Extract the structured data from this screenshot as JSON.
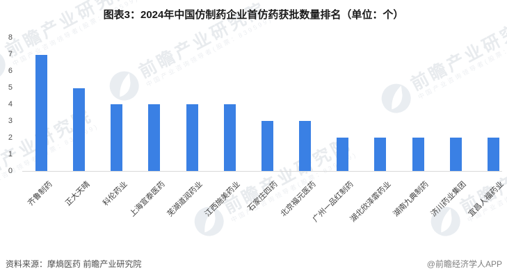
{
  "title": "图表3：2024年中国仿制药企业首仿药获批数量排名（单位：个）",
  "chart_data": {
    "type": "bar",
    "title": "2024年中国仿制药企业首仿药获批数量排名",
    "unit_label": "单位：个",
    "categories": [
      "齐鲁制药",
      "正大天晴",
      "科伦药业",
      "上海宣泰医药",
      "芜湖道润药业",
      "江西施美药业",
      "石家庄四药",
      "北京福元医药",
      "广州一品红制药",
      "湖北欣泽霏药业",
      "湖南九典制药",
      "济川药业集团",
      "宜昌人福药业"
    ],
    "values": [
      7,
      5,
      4,
      4,
      4,
      4,
      3,
      3,
      2,
      2,
      2,
      2,
      2
    ],
    "xlabel": "",
    "ylabel": "",
    "ylim": [
      0,
      8
    ],
    "yticks": [
      0,
      1,
      2,
      3,
      4,
      5,
      6,
      7,
      8
    ],
    "grid": "off",
    "legend": "none",
    "bar_color": "#3A80E4"
  },
  "footer": {
    "source": "资料来源：摩熵医药  前瞻产业研究院",
    "credit": "@前瞻经济学人APP"
  },
  "watermark": {
    "big_text": "前瞻产业研究院",
    "small_text": "中国产业咨询领导者(股票：839599)"
  },
  "colors": {
    "bar": "#3A80E4",
    "axis_line": "#d8d8d8",
    "title_text": "#1a1a1a",
    "tick_text": "#4d4d4d",
    "watermark": "#e8ebee"
  }
}
